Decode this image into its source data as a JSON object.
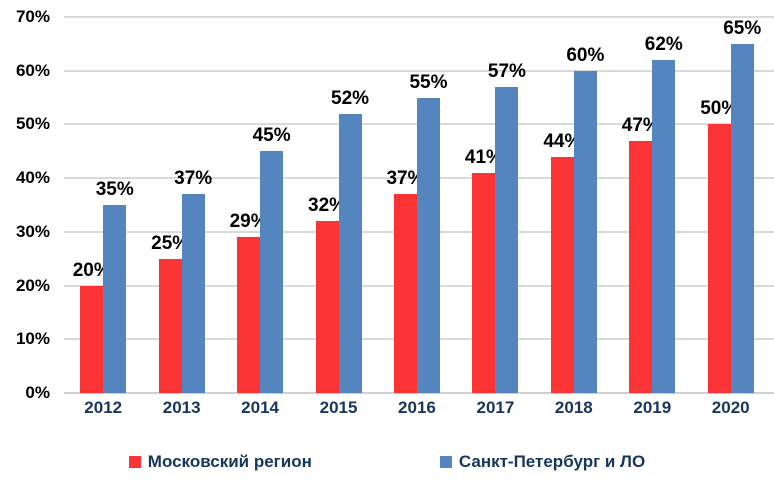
{
  "chart_data": {
    "type": "bar",
    "title": "",
    "xlabel": "",
    "ylabel": "",
    "categories": [
      "2012",
      "2013",
      "2014",
      "2015",
      "2016",
      "2017",
      "2018",
      "2019",
      "2020"
    ],
    "series": [
      {
        "name": "Московский регион",
        "color": "#FA3435",
        "values": [
          20,
          25,
          29,
          32,
          37,
          41,
          44,
          47,
          50
        ]
      },
      {
        "name": "Санкт-Петербург и ЛО",
        "color": "#5585BE",
        "values": [
          35,
          37,
          45,
          52,
          55,
          57,
          60,
          62,
          65
        ]
      }
    ],
    "value_label_suffix": "%",
    "y_ticks": [
      "0%",
      "10%",
      "20%",
      "30%",
      "40%",
      "50%",
      "60%",
      "70%"
    ],
    "y_tick_values": [
      0,
      10,
      20,
      30,
      40,
      50,
      60,
      70
    ],
    "ylim": [
      0,
      70
    ],
    "grid": true,
    "legend_position": "bottom",
    "colors": {
      "gridline": "#D9D9D9",
      "baseline": "#CFCFCF",
      "axis_tick_text": "#000000",
      "category_text": "#17365D",
      "legend_text": "#17365D",
      "background": "#FFFFFF"
    }
  }
}
